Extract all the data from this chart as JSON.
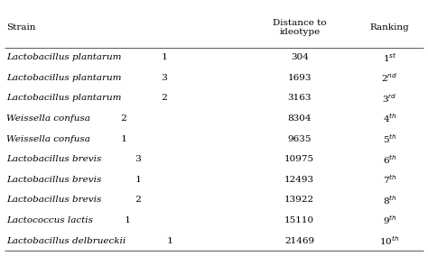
{
  "headers": [
    "Strain",
    "Distance to\nideotype",
    "Ranking"
  ],
  "strains": [
    "Lactobacillus plantarum 1",
    "Lactobacillus plantarum 3",
    "Lactobacillus plantarum 2",
    "Weissella confusa 2",
    "Weissella confusa 1",
    "Lactobacillus brevis 3",
    "Lactobacillus brevis 1",
    "Lactobacillus brevis 2",
    "Lactococcus lactis 1",
    "Lactobacillus delbrueckii 1"
  ],
  "distances": [
    "304",
    "1693",
    "3163",
    "8304",
    "9635",
    "10975",
    "12493",
    "13922",
    "15110",
    "21469"
  ],
  "rankings": [
    "1$^{st}$",
    "2$^{nd}$",
    "3$^{rd}$",
    "4$^{th}$",
    "5$^{th}$",
    "6$^{th}$",
    "7$^{th}$",
    "8$^{th}$",
    "9$^{th}$",
    "10$^{th}$"
  ],
  "font_size": 7.5,
  "header_font_size": 7.5,
  "bg_color": "#ffffff",
  "text_color": "#000000",
  "line_color": "#555555"
}
